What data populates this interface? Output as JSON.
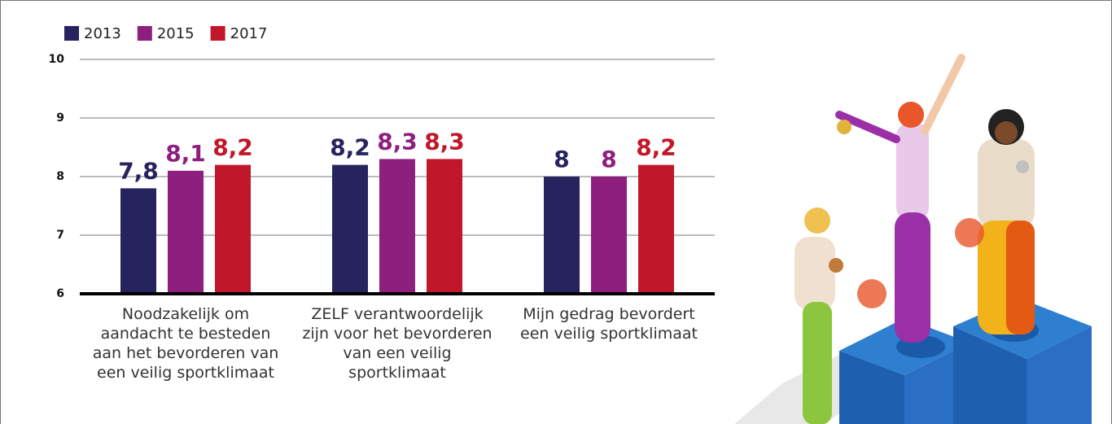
{
  "chart_data": {
    "type": "bar",
    "categories": [
      "Noodzakelijk om aandacht te besteden aan het bevorderen van een veilig sportklimaat",
      "ZELF verantwoordelijk zijn voor het bevorderen van een veilig sportklimaat",
      "Mijn gedrag bevordert een veilig sportklimaat"
    ],
    "series": [
      {
        "name": "2013",
        "color": "#26235e",
        "values": [
          7.8,
          8.2,
          8
        ],
        "value_labels": [
          "7,8",
          "8,2",
          "8"
        ]
      },
      {
        "name": "2015",
        "color": "#8e1f7f",
        "values": [
          8.1,
          8.3,
          8
        ],
        "value_labels": [
          "8,1",
          "8,3",
          "8"
        ]
      },
      {
        "name": "2017",
        "color": "#c0182a",
        "values": [
          8.2,
          8.3,
          8.2
        ],
        "value_labels": [
          "8,2",
          "8,3",
          "8,2"
        ]
      }
    ],
    "ylim": [
      6,
      10
    ],
    "yticks": [
      6,
      7,
      8,
      9,
      10
    ],
    "grid": true,
    "legend": "top-left"
  }
}
